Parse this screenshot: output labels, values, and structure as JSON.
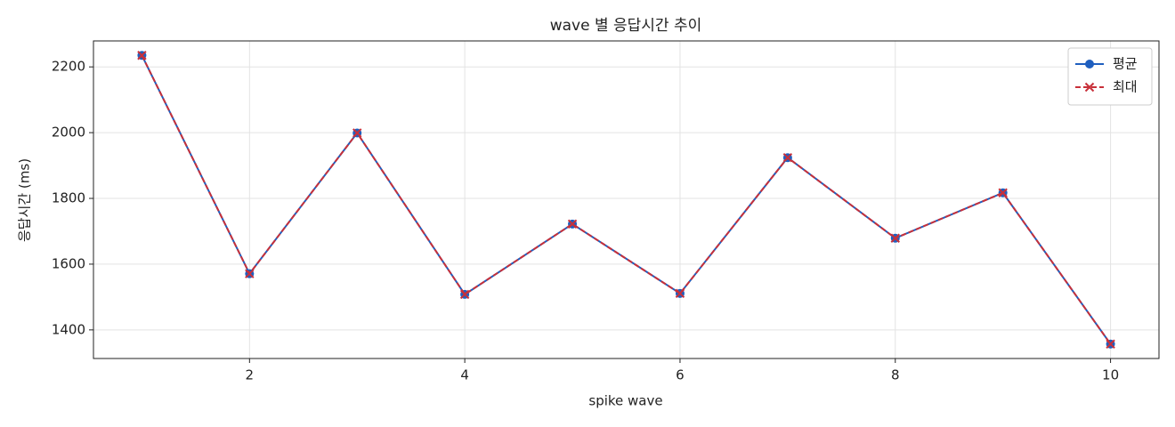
{
  "chart_data": {
    "type": "line",
    "title": "wave 별 응답시간 추이",
    "x_label": "spike wave",
    "y_label": "응답시간 (ms)",
    "x": [
      1,
      2,
      3,
      4,
      5,
      6,
      7,
      8,
      9,
      10
    ],
    "series": [
      {
        "name": "평균",
        "color": "#1f5fbf",
        "marker": "o",
        "linestyle": "solid",
        "values": [
          2235,
          1571,
          1999,
          1508,
          1722,
          1511,
          1924,
          1679,
          1817,
          1357
        ]
      },
      {
        "name": "최대",
        "color": "#c8303a",
        "marker": "x",
        "linestyle": "dashed",
        "values": [
          2235,
          1571,
          1999,
          1508,
          1722,
          1511,
          1924,
          1679,
          1817,
          1357
        ]
      }
    ],
    "xlim": [
      0.55,
      10.45
    ],
    "xticks": [
      2,
      4,
      6,
      8,
      10
    ],
    "ylim": [
      1313,
      2279
    ],
    "yticks": [
      1400,
      1600,
      1800,
      2000,
      2200
    ],
    "grid": true,
    "legend": "upper right"
  }
}
